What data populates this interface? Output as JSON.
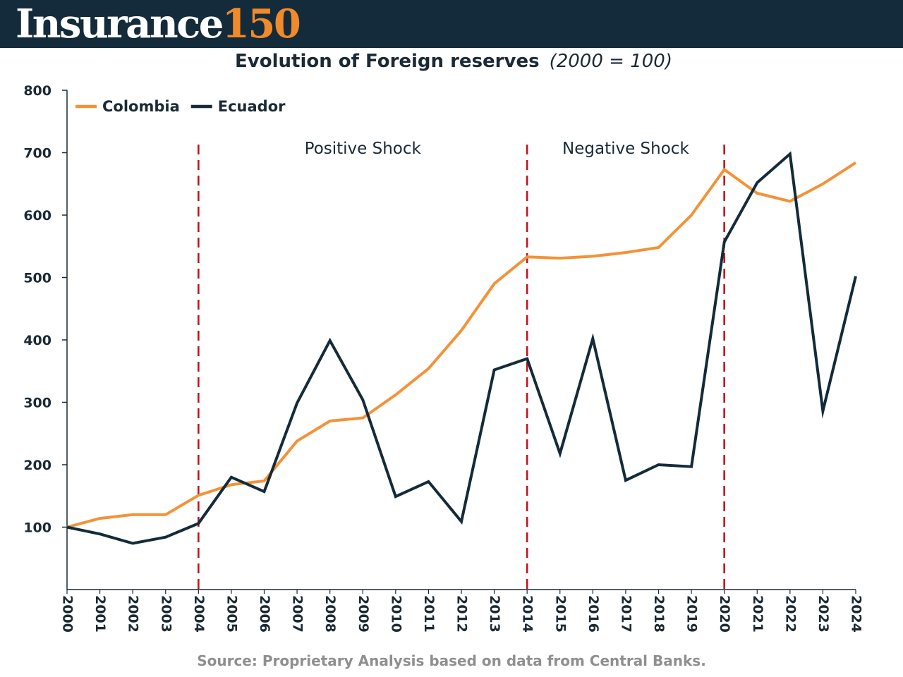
{
  "header": {
    "logo_word": "Insurance",
    "logo_number": "150",
    "bg_color": "#132b3a",
    "accent_color": "#f08a2a"
  },
  "chart_data": {
    "type": "line",
    "title": "Evolution of Foreign reserves",
    "subtitle": "(2000 = 100)",
    "xlabel": "",
    "ylabel": "",
    "categories": [
      "2000",
      "2001",
      "2002",
      "2003",
      "2004",
      "2005",
      "2006",
      "2007",
      "2008",
      "2009",
      "2010",
      "2011",
      "2012",
      "2013",
      "2014",
      "2015",
      "2016",
      "2017",
      "2018",
      "2019",
      "2020",
      "2021",
      "2022",
      "2023",
      "2024"
    ],
    "yticks": [
      100,
      200,
      300,
      400,
      500,
      600,
      700,
      800
    ],
    "ylim": [
      0,
      800
    ],
    "grid": false,
    "legend_position": "top-left",
    "series": [
      {
        "name": "Colombia",
        "color": "#f39237",
        "values": [
          100,
          114,
          120,
          120,
          151,
          168,
          174,
          238,
          270,
          275,
          312,
          354,
          415,
          490,
          533,
          531,
          534,
          540,
          548,
          600,
          673,
          635,
          622,
          650,
          684
        ]
      },
      {
        "name": "Ecuador",
        "color": "#132b3a",
        "values": [
          100,
          89,
          74,
          84,
          106,
          180,
          157,
          299,
          399,
          304,
          149,
          173,
          109,
          352,
          370,
          218,
          402,
          175,
          200,
          197,
          557,
          652,
          698,
          286,
          502
        ]
      }
    ],
    "annotations": [
      {
        "type": "vline",
        "x": "2004",
        "color": "#c0141e"
      },
      {
        "type": "vline",
        "x": "2014",
        "color": "#c0141e"
      },
      {
        "type": "vline",
        "x": "2020",
        "color": "#c0141e"
      },
      {
        "type": "text",
        "text": "Positive Shock",
        "x_between": [
          "2004",
          "2014"
        ]
      },
      {
        "type": "text",
        "text": "Negative Shock",
        "x_between": [
          "2014",
          "2020"
        ]
      }
    ]
  },
  "source": "Source: Proprietary Analysis based on data from Central Banks."
}
